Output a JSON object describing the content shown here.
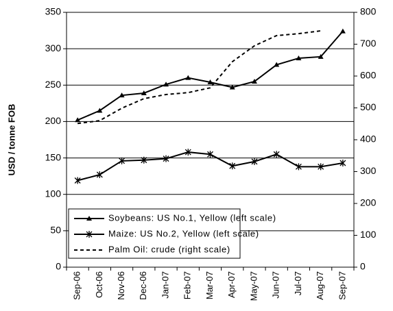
{
  "chart_data": {
    "type": "line",
    "y_label": "USD / tonne FOB",
    "categories": [
      "Sep-06",
      "Oct-06",
      "Nov-06",
      "Dec-06",
      "Jan-07",
      "Feb-07",
      "Mar-07",
      "Apr-07",
      "May-07",
      "Jun-07",
      "Jul-07",
      "Aug-07",
      "Sep-07"
    ],
    "series": [
      {
        "name": "Soybeans: US No.1, Yellow (left scale)",
        "color": "#000000",
        "marker": "triangle",
        "dash": "solid",
        "values": [
          202,
          215,
          236,
          239,
          251,
          260,
          254,
          247,
          255,
          278,
          287,
          289,
          324
        ]
      },
      {
        "name": "Maize: US No.2, Yellow (left scale)",
        "color": "#000000",
        "marker": "asterisk",
        "dash": "solid",
        "values": [
          119,
          127,
          146,
          147,
          149,
          158,
          155,
          139,
          145,
          155,
          138,
          138,
          143
        ]
      },
      {
        "name": "Palm Oil: crude (right scale)",
        "color": "#000000",
        "marker": "none",
        "dash": "dashed",
        "axis": "y2",
        "values": [
          451,
          460,
          499,
          529,
          542,
          548,
          563,
          645,
          695,
          727,
          733,
          742,
          null
        ]
      }
    ],
    "ylim": [
      0,
      350
    ],
    "yticks": [
      0,
      50,
      100,
      150,
      200,
      250,
      300,
      350
    ],
    "y2lim": [
      0,
      800
    ],
    "y2ticks": [
      0,
      100,
      200,
      300,
      400,
      500,
      600,
      700,
      800
    ],
    "grid": true,
    "legend": "bottom-left"
  }
}
